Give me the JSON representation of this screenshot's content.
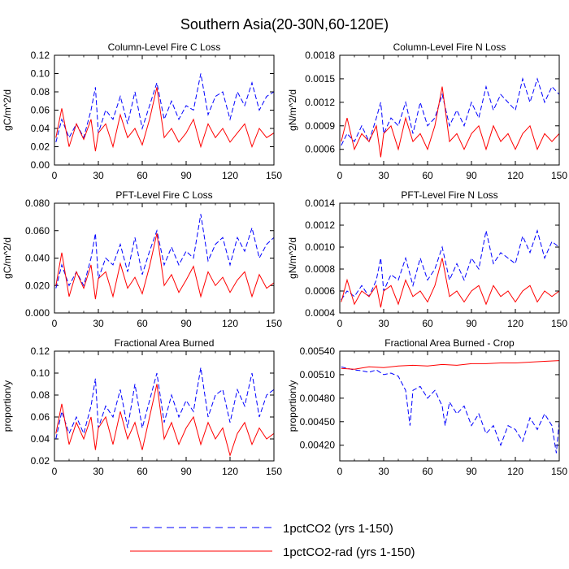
{
  "figure": {
    "title": "Southern Asia(20-30N,60-120E)",
    "legend": [
      {
        "label": "1pctCO2 (yrs 1-150)",
        "color": "#0000ff",
        "dash": "dashed"
      },
      {
        "label": "1pctCO2-rad (yrs 1-150)",
        "color": "#ff0000",
        "dash": "solid"
      }
    ]
  },
  "chart_data": [
    {
      "type": "line",
      "title": "Column-Level Fire C Loss",
      "ylabel": "gC/m^2/d",
      "xlabel": "",
      "xlim": [
        0,
        150
      ],
      "ylim": [
        0.0,
        0.12
      ],
      "xticks": [
        "0",
        "30",
        "60",
        "90",
        "120",
        "150"
      ],
      "yticks": [
        "0.00",
        "0.02",
        "0.04",
        "0.06",
        "0.08",
        "0.10",
        "0.12"
      ],
      "series": [
        {
          "name": "1pctCO2 (yrs 1-150)",
          "color": "#0000ff",
          "dash": "dashed",
          "x": [
            1,
            5,
            10,
            15,
            20,
            25,
            28,
            30,
            35,
            40,
            45,
            50,
            55,
            60,
            65,
            70,
            75,
            80,
            85,
            90,
            95,
            100,
            105,
            110,
            115,
            120,
            125,
            130,
            135,
            140,
            145,
            150
          ],
          "y": [
            0.025,
            0.05,
            0.03,
            0.045,
            0.03,
            0.06,
            0.085,
            0.035,
            0.06,
            0.05,
            0.075,
            0.045,
            0.08,
            0.04,
            0.065,
            0.09,
            0.05,
            0.07,
            0.05,
            0.065,
            0.06,
            0.1,
            0.055,
            0.075,
            0.08,
            0.05,
            0.08,
            0.065,
            0.09,
            0.06,
            0.075,
            0.08
          ]
        },
        {
          "name": "1pctCO2-rad (yrs 1-150)",
          "color": "#ff0000",
          "dash": "solid",
          "x": [
            1,
            5,
            10,
            15,
            20,
            25,
            28,
            30,
            35,
            40,
            45,
            50,
            55,
            60,
            65,
            70,
            75,
            80,
            85,
            90,
            95,
            100,
            105,
            110,
            115,
            120,
            125,
            130,
            135,
            140,
            145,
            150
          ],
          "y": [
            0.03,
            0.062,
            0.02,
            0.045,
            0.028,
            0.05,
            0.015,
            0.035,
            0.045,
            0.02,
            0.055,
            0.03,
            0.04,
            0.022,
            0.05,
            0.085,
            0.03,
            0.04,
            0.025,
            0.035,
            0.05,
            0.02,
            0.045,
            0.03,
            0.04,
            0.025,
            0.035,
            0.045,
            0.02,
            0.04,
            0.03,
            0.035
          ]
        }
      ]
    },
    {
      "type": "line",
      "title": "Column-Level Fire N Loss",
      "ylabel": "gN/m^2/d",
      "xlabel": "",
      "xlim": [
        0,
        150
      ],
      "ylim": [
        0.0004,
        0.0018
      ],
      "xticks": [
        "0",
        "30",
        "60",
        "90",
        "120",
        "150"
      ],
      "yticks": [
        "0.0006",
        "0.0009",
        "0.0012",
        "0.0015",
        "0.0018"
      ],
      "series": [
        {
          "name": "1pctCO2 (yrs 1-150)",
          "color": "#0000ff",
          "dash": "dashed",
          "x": [
            1,
            5,
            10,
            15,
            20,
            25,
            28,
            30,
            35,
            40,
            45,
            50,
            55,
            60,
            65,
            70,
            75,
            80,
            85,
            90,
            95,
            100,
            105,
            110,
            115,
            120,
            125,
            130,
            135,
            140,
            145,
            150
          ],
          "y": [
            0.00065,
            0.0008,
            0.0007,
            0.0009,
            0.0007,
            0.001,
            0.0012,
            0.0008,
            0.001,
            0.0009,
            0.0012,
            0.0008,
            0.0012,
            0.0009,
            0.001,
            0.0013,
            0.0009,
            0.0011,
            0.0009,
            0.0012,
            0.001,
            0.0014,
            0.0011,
            0.0013,
            0.0012,
            0.0011,
            0.0015,
            0.0012,
            0.0015,
            0.0012,
            0.0014,
            0.0013
          ]
        },
        {
          "name": "1pctCO2-rad (yrs 1-150)",
          "color": "#ff0000",
          "dash": "solid",
          "x": [
            1,
            5,
            10,
            15,
            20,
            25,
            28,
            30,
            35,
            40,
            45,
            50,
            55,
            60,
            65,
            70,
            75,
            80,
            85,
            90,
            95,
            100,
            105,
            110,
            115,
            120,
            125,
            130,
            135,
            140,
            145,
            150
          ],
          "y": [
            0.0007,
            0.001,
            0.0006,
            0.0008,
            0.0007,
            0.0009,
            0.0005,
            0.0008,
            0.0009,
            0.0006,
            0.001,
            0.0007,
            0.0008,
            0.0006,
            0.0009,
            0.0014,
            0.0007,
            0.0008,
            0.0006,
            0.0008,
            0.0009,
            0.0006,
            0.0009,
            0.0007,
            0.0008,
            0.0006,
            0.0008,
            0.0009,
            0.0006,
            0.0008,
            0.0007,
            0.0008
          ]
        }
      ]
    },
    {
      "type": "line",
      "title": "PFT-Level Fire C Loss",
      "ylabel": "gC/m^2/d",
      "xlabel": "",
      "xlim": [
        0,
        150
      ],
      "ylim": [
        0.0,
        0.08
      ],
      "xticks": [
        "0",
        "30",
        "60",
        "90",
        "120",
        "150"
      ],
      "yticks": [
        "0.000",
        "0.020",
        "0.040",
        "0.060",
        "0.080"
      ],
      "series": [
        {
          "name": "1pctCO2 (yrs 1-150)",
          "color": "#0000ff",
          "dash": "dashed",
          "x": [
            1,
            5,
            10,
            15,
            20,
            25,
            28,
            30,
            35,
            40,
            45,
            50,
            55,
            60,
            65,
            70,
            75,
            80,
            85,
            90,
            95,
            100,
            105,
            110,
            115,
            120,
            125,
            130,
            135,
            140,
            145,
            150
          ],
          "y": [
            0.018,
            0.035,
            0.02,
            0.03,
            0.02,
            0.04,
            0.058,
            0.025,
            0.04,
            0.035,
            0.05,
            0.03,
            0.055,
            0.028,
            0.045,
            0.06,
            0.035,
            0.048,
            0.035,
            0.045,
            0.04,
            0.072,
            0.038,
            0.05,
            0.055,
            0.035,
            0.055,
            0.045,
            0.062,
            0.04,
            0.05,
            0.055
          ]
        },
        {
          "name": "1pctCO2-rad (yrs 1-150)",
          "color": "#ff0000",
          "dash": "solid",
          "x": [
            1,
            5,
            10,
            15,
            20,
            25,
            28,
            30,
            35,
            40,
            45,
            50,
            55,
            60,
            65,
            70,
            75,
            80,
            85,
            90,
            95,
            100,
            105,
            110,
            115,
            120,
            125,
            130,
            135,
            140,
            145,
            150
          ],
          "y": [
            0.02,
            0.044,
            0.012,
            0.03,
            0.018,
            0.035,
            0.01,
            0.025,
            0.03,
            0.012,
            0.036,
            0.018,
            0.026,
            0.014,
            0.034,
            0.058,
            0.02,
            0.028,
            0.015,
            0.024,
            0.034,
            0.012,
            0.03,
            0.02,
            0.026,
            0.015,
            0.024,
            0.03,
            0.012,
            0.028,
            0.018,
            0.022
          ]
        }
      ]
    },
    {
      "type": "line",
      "title": "PFT-Level Fire N Loss",
      "ylabel": "gN/m^2/d",
      "xlabel": "",
      "xlim": [
        0,
        150
      ],
      "ylim": [
        0.0004,
        0.0014
      ],
      "xticks": [
        "0",
        "30",
        "60",
        "90",
        "120",
        "150"
      ],
      "yticks": [
        "0.0004",
        "0.0006",
        "0.0008",
        "0.0010",
        "0.0012",
        "0.0014"
      ],
      "series": [
        {
          "name": "1pctCO2 (yrs 1-150)",
          "color": "#0000ff",
          "dash": "dashed",
          "x": [
            1,
            5,
            10,
            15,
            20,
            25,
            28,
            30,
            35,
            40,
            45,
            50,
            55,
            60,
            65,
            70,
            75,
            80,
            85,
            90,
            95,
            100,
            105,
            110,
            115,
            120,
            125,
            130,
            135,
            140,
            145,
            150
          ],
          "y": [
            0.00052,
            0.0006,
            0.00055,
            0.00065,
            0.00055,
            0.0007,
            0.0009,
            0.0006,
            0.00075,
            0.0007,
            0.0009,
            0.00065,
            0.0009,
            0.0007,
            0.0008,
            0.001,
            0.0007,
            0.00085,
            0.0007,
            0.0009,
            0.0008,
            0.00115,
            0.00085,
            0.00095,
            0.0009,
            0.00085,
            0.0011,
            0.00095,
            0.00115,
            0.0009,
            0.00105,
            0.001
          ]
        },
        {
          "name": "1pctCO2-rad (yrs 1-150)",
          "color": "#ff0000",
          "dash": "solid",
          "x": [
            1,
            5,
            10,
            15,
            20,
            25,
            28,
            30,
            35,
            40,
            45,
            50,
            55,
            60,
            65,
            70,
            75,
            80,
            85,
            90,
            95,
            100,
            105,
            110,
            115,
            120,
            125,
            130,
            135,
            140,
            145,
            150
          ],
          "y": [
            0.0005,
            0.0007,
            0.00048,
            0.0006,
            0.00055,
            0.00065,
            0.00045,
            0.0006,
            0.00065,
            0.00048,
            0.0007,
            0.00055,
            0.0006,
            0.0005,
            0.00065,
            0.0009,
            0.00055,
            0.0006,
            0.0005,
            0.0006,
            0.00065,
            0.00048,
            0.00065,
            0.00055,
            0.0006,
            0.0005,
            0.0006,
            0.00065,
            0.0005,
            0.0006,
            0.00055,
            0.0006
          ]
        }
      ]
    },
    {
      "type": "line",
      "title": "Fractional Area Burned",
      "ylabel": "proportion/y",
      "xlabel": "",
      "xlim": [
        0,
        150
      ],
      "ylim": [
        0.02,
        0.12
      ],
      "xticks": [
        "0",
        "30",
        "60",
        "90",
        "120",
        "150"
      ],
      "yticks": [
        "0.02",
        "0.04",
        "0.06",
        "0.08",
        "0.10",
        "0.12"
      ],
      "series": [
        {
          "name": "1pctCO2 (yrs 1-150)",
          "color": "#0000ff",
          "dash": "dashed",
          "x": [
            1,
            5,
            10,
            15,
            20,
            25,
            28,
            30,
            35,
            40,
            45,
            50,
            55,
            60,
            65,
            70,
            75,
            80,
            85,
            90,
            95,
            100,
            105,
            110,
            115,
            120,
            125,
            130,
            135,
            140,
            145,
            150
          ],
          "y": [
            0.04,
            0.065,
            0.045,
            0.06,
            0.045,
            0.07,
            0.095,
            0.05,
            0.07,
            0.06,
            0.085,
            0.05,
            0.09,
            0.05,
            0.075,
            0.1,
            0.055,
            0.08,
            0.06,
            0.075,
            0.065,
            0.105,
            0.06,
            0.08,
            0.085,
            0.055,
            0.085,
            0.07,
            0.1,
            0.06,
            0.08,
            0.085
          ]
        },
        {
          "name": "1pctCO2-rad (yrs 1-150)",
          "color": "#ff0000",
          "dash": "solid",
          "x": [
            1,
            5,
            10,
            15,
            20,
            25,
            28,
            30,
            35,
            40,
            45,
            50,
            55,
            60,
            65,
            70,
            75,
            80,
            85,
            90,
            95,
            100,
            105,
            110,
            115,
            120,
            125,
            130,
            135,
            140,
            145,
            150
          ],
          "y": [
            0.045,
            0.072,
            0.035,
            0.055,
            0.04,
            0.06,
            0.03,
            0.05,
            0.06,
            0.035,
            0.065,
            0.04,
            0.055,
            0.03,
            0.06,
            0.09,
            0.04,
            0.055,
            0.035,
            0.05,
            0.06,
            0.035,
            0.055,
            0.04,
            0.05,
            0.025,
            0.045,
            0.055,
            0.035,
            0.05,
            0.04,
            0.045
          ]
        }
      ]
    },
    {
      "type": "line",
      "title": "Fractional Area Burned - Crop",
      "ylabel": "proportion/y",
      "xlabel": "",
      "xlim": [
        0,
        150
      ],
      "ylim": [
        0.004,
        0.0054
      ],
      "xticks": [
        "0",
        "30",
        "60",
        "90",
        "120",
        "150"
      ],
      "yticks": [
        "0.00420",
        "0.00450",
        "0.00480",
        "0.00510",
        "0.00540"
      ],
      "series": [
        {
          "name": "1pctCO2 (yrs 1-150)",
          "color": "#0000ff",
          "dash": "dashed",
          "x": [
            1,
            5,
            10,
            15,
            20,
            25,
            30,
            35,
            40,
            45,
            48,
            50,
            55,
            60,
            65,
            70,
            72,
            75,
            80,
            85,
            90,
            95,
            100,
            105,
            110,
            115,
            120,
            125,
            130,
            135,
            140,
            145,
            148,
            150
          ],
          "y": [
            0.0052,
            0.00518,
            0.00516,
            0.00515,
            0.00513,
            0.00516,
            0.0051,
            0.00512,
            0.00508,
            0.0049,
            0.00445,
            0.0049,
            0.00495,
            0.0048,
            0.0049,
            0.0047,
            0.00445,
            0.00475,
            0.0046,
            0.0047,
            0.00445,
            0.0046,
            0.00435,
            0.00445,
            0.0042,
            0.00445,
            0.0044,
            0.00425,
            0.00455,
            0.0044,
            0.0046,
            0.00445,
            0.0041,
            0.0045
          ]
        },
        {
          "name": "1pctCO2-rad (yrs 1-150)",
          "color": "#ff0000",
          "dash": "solid",
          "x": [
            1,
            10,
            20,
            30,
            40,
            50,
            60,
            70,
            80,
            90,
            100,
            110,
            120,
            130,
            140,
            150
          ],
          "y": [
            0.00518,
            0.00517,
            0.0052,
            0.00519,
            0.00521,
            0.00522,
            0.00521,
            0.00523,
            0.00522,
            0.00524,
            0.00524,
            0.00525,
            0.00525,
            0.00526,
            0.00527,
            0.00528
          ]
        }
      ]
    }
  ]
}
